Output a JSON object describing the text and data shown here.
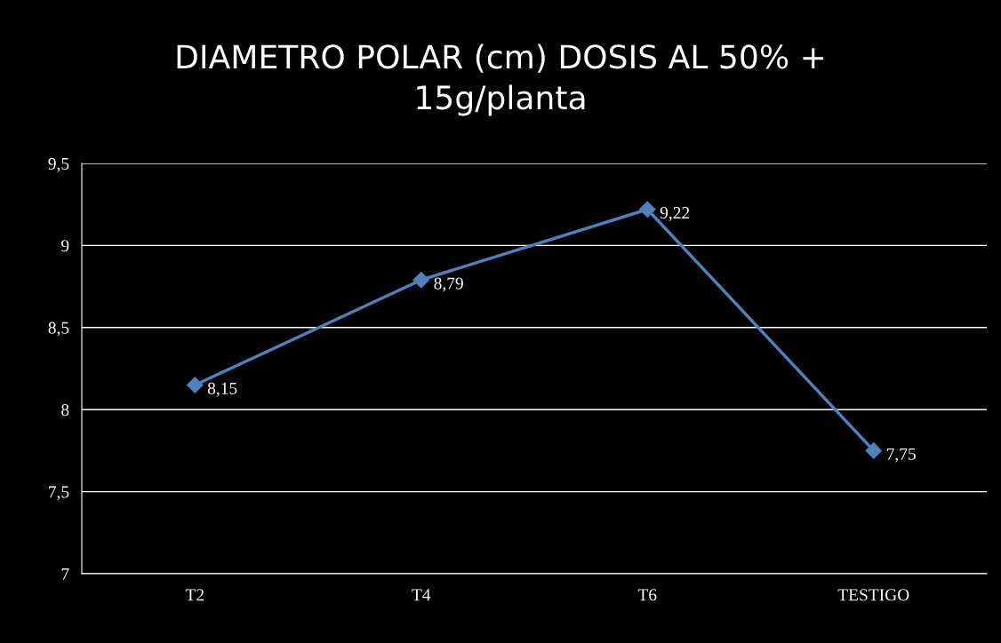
{
  "chart_data": {
    "type": "line",
    "title": "DIAMETRO POLAR (cm) DOSIS AL 50% +\n15g/planta",
    "categories": [
      "T2",
      "T4",
      "T6",
      "TESTIGO"
    ],
    "series": [
      {
        "color": "#4f81bd",
        "values": [
          8.15,
          8.79,
          9.22,
          7.75
        ],
        "value_labels": [
          "8,15",
          "8,79",
          "9,22",
          "7,75"
        ]
      }
    ],
    "ylim": [
      7,
      9.5
    ],
    "yticks": [
      7,
      {
        "value": 7.5,
        "label": "7,5"
      },
      8,
      {
        "value": 8.5,
        "label": "8,5"
      },
      9,
      {
        "value": 9.5,
        "label": "9,5"
      }
    ],
    "grid": "y",
    "marker": "diamond",
    "line_style": "solid"
  }
}
